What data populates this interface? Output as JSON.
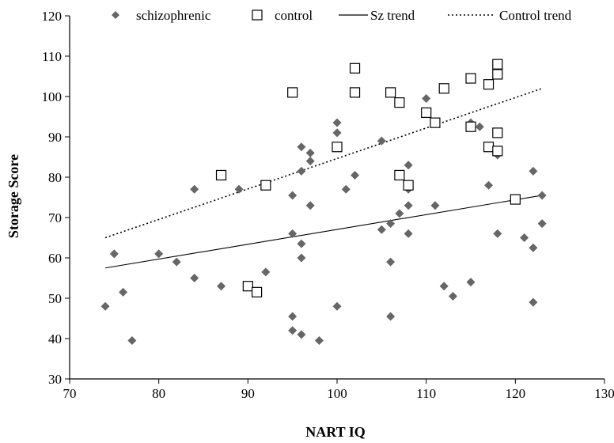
{
  "chart_data": {
    "type": "scatter",
    "xlabel": "NART IQ",
    "ylabel": "Storage Score",
    "xlim": [
      70,
      130
    ],
    "ylim": [
      30,
      120
    ],
    "x_ticks": [
      70,
      80,
      90,
      100,
      110,
      120,
      130
    ],
    "y_ticks": [
      30,
      40,
      50,
      60,
      70,
      80,
      90,
      100,
      110,
      120
    ],
    "grid": false,
    "legend_position": "top",
    "legend": [
      "schizophrenic",
      "control",
      "Sz trend",
      "Control trend"
    ],
    "series": [
      {
        "name": "schizophrenic",
        "marker": "diamond",
        "color": "#666666",
        "points": [
          [
            74,
            48
          ],
          [
            75,
            61
          ],
          [
            76,
            51.5
          ],
          [
            77,
            39.5
          ],
          [
            80,
            61
          ],
          [
            82,
            59
          ],
          [
            84,
            77
          ],
          [
            84,
            55
          ],
          [
            87,
            53
          ],
          [
            89,
            77
          ],
          [
            92,
            56.5
          ],
          [
            95,
            75.5
          ],
          [
            95,
            66
          ],
          [
            95,
            45.5
          ],
          [
            95,
            42
          ],
          [
            96,
            87.5
          ],
          [
            96,
            81.5
          ],
          [
            96,
            63.5
          ],
          [
            96,
            60
          ],
          [
            96,
            41
          ],
          [
            97,
            86
          ],
          [
            97,
            84
          ],
          [
            97,
            73
          ],
          [
            98,
            39.5
          ],
          [
            100,
            93.5
          ],
          [
            100,
            91
          ],
          [
            100,
            48
          ],
          [
            101,
            77
          ],
          [
            102,
            80.5
          ],
          [
            105,
            89
          ],
          [
            105,
            67
          ],
          [
            106,
            68.5
          ],
          [
            106,
            59
          ],
          [
            106,
            45.5
          ],
          [
            107,
            71
          ],
          [
            108,
            83
          ],
          [
            108,
            77
          ],
          [
            108,
            73
          ],
          [
            108,
            66
          ],
          [
            110,
            99.5
          ],
          [
            111,
            73
          ],
          [
            112,
            53
          ],
          [
            113,
            50.5
          ],
          [
            115,
            93.5
          ],
          [
            115,
            54
          ],
          [
            116,
            92.5
          ],
          [
            117,
            78
          ],
          [
            118,
            85.5
          ],
          [
            118,
            66
          ],
          [
            121,
            65
          ],
          [
            122,
            81.5
          ],
          [
            122,
            62.5
          ],
          [
            122,
            49
          ],
          [
            123,
            75.5
          ],
          [
            123,
            68.5
          ]
        ]
      },
      {
        "name": "control",
        "marker": "square",
        "color": "#000000",
        "points": [
          [
            87,
            80.5
          ],
          [
            90,
            53
          ],
          [
            91,
            51.5
          ],
          [
            92,
            78
          ],
          [
            95,
            101
          ],
          [
            100,
            87.5
          ],
          [
            102,
            107
          ],
          [
            102,
            101
          ],
          [
            106,
            101
          ],
          [
            107,
            98.5
          ],
          [
            107,
            80.5
          ],
          [
            108,
            78
          ],
          [
            110,
            96
          ],
          [
            111,
            93.5
          ],
          [
            112,
            102
          ],
          [
            115,
            104.5
          ],
          [
            115,
            92.5
          ],
          [
            117,
            103
          ],
          [
            117,
            87.5
          ],
          [
            118,
            108
          ],
          [
            118,
            105.5
          ],
          [
            118,
            91
          ],
          [
            118,
            86.5
          ],
          [
            120,
            74.5
          ]
        ]
      }
    ],
    "trendlines": [
      {
        "name": "Sz trend",
        "style": "solid",
        "x": [
          74,
          123
        ],
        "y": [
          57.5,
          75.5
        ]
      },
      {
        "name": "Control trend",
        "style": "dotted",
        "x": [
          74,
          123
        ],
        "y": [
          65,
          102
        ]
      }
    ]
  }
}
